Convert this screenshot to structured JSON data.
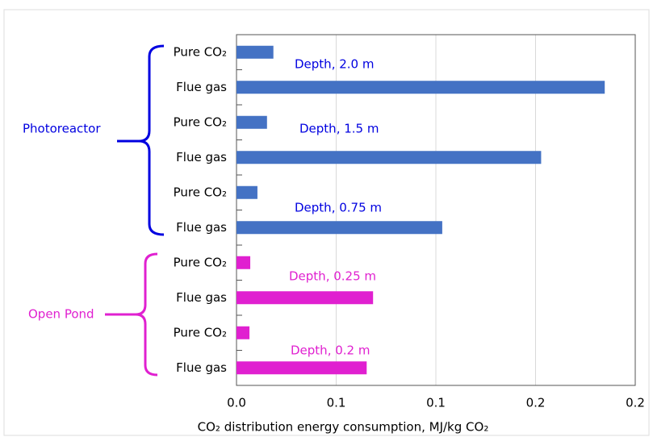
{
  "chart_data": {
    "type": "bar",
    "orientation": "horizontal",
    "categories": [
      "Pure CO₂",
      "Flue gas",
      "Pure CO₂",
      "Flue gas",
      "Pure CO₂",
      "Flue gas",
      "Pure CO₂",
      "Flue gas",
      "Pure CO₂",
      "Flue gas"
    ],
    "values": [
      0.0185,
      0.1847,
      0.0153,
      0.1528,
      0.0105,
      0.1032,
      0.0069,
      0.0685,
      0.0065,
      0.0653
    ],
    "colors": [
      "#4472c4",
      "#4472c4",
      "#4472c4",
      "#4472c4",
      "#4472c4",
      "#4472c4",
      "#e020d0",
      "#e020d0",
      "#e020d0",
      "#e020d0"
    ],
    "xlim": [
      0,
      0.2
    ],
    "xticks": [
      {
        "value": 0,
        "label": "0.0"
      },
      {
        "value": 0.05,
        "label": "0.1"
      },
      0.1,
      {
        "value": 0.15,
        "label": "0.2"
      },
      0.2
    ],
    "xlabel": "CO₂ distribution energy consumption, MJ/kg CO₂",
    "grid": true,
    "annotations": [
      {
        "text": "Depth, 2.0 m",
        "color": "#0000e0"
      },
      {
        "text": "Depth, 1.5 m",
        "color": "#0000e0"
      },
      {
        "text": "Depth, 0.75 m",
        "color": "#0000e0"
      },
      {
        "text": "Depth, 0.25 m",
        "color": "#e020d0"
      },
      {
        "text": "Depth, 0.2 m",
        "color": "#e020d0"
      },
      {
        "text": "Photoreactor",
        "color": "#0000e0"
      },
      {
        "text": "Open Pond",
        "color": "#e020d0"
      }
    ]
  }
}
